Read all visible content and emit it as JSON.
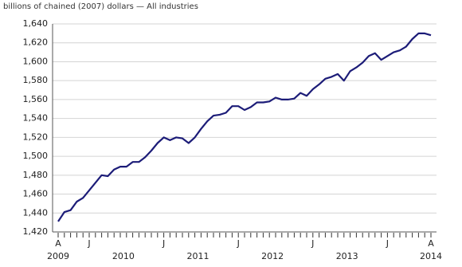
{
  "chart_data": {
    "type": "line",
    "title": "billions of chained (2007) dollars — All industries",
    "categories": [
      "A",
      null,
      null,
      null,
      null,
      "J",
      null,
      null,
      null,
      null,
      null,
      null,
      null,
      null,
      null,
      null,
      null,
      "J",
      null,
      null,
      null,
      null,
      null,
      null,
      null,
      null,
      null,
      null,
      null,
      "J",
      null,
      null,
      null,
      null,
      null,
      null,
      null,
      null,
      null,
      null,
      null,
      "J",
      null,
      null,
      null,
      null,
      null,
      null,
      null,
      null,
      null,
      null,
      null,
      "J",
      null,
      null,
      null,
      null,
      null,
      null,
      "A"
    ],
    "years": [
      "2009",
      "2010",
      "2011",
      "2012",
      "2013",
      "2014"
    ],
    "series": [
      {
        "name": "All industries",
        "color": "#1c1c78",
        "values": [
          1431,
          1441,
          1443,
          1452,
          1456,
          1464,
          1472,
          1480,
          1479,
          1486,
          1489,
          1489,
          1494,
          1494,
          1499,
          1506,
          1514,
          1520,
          1517,
          1520,
          1519,
          1514,
          1520,
          1529,
          1537,
          1543,
          1544,
          1546,
          1553,
          1553,
          1549,
          1552,
          1557,
          1557,
          1558,
          1562,
          1560,
          1560,
          1561,
          1567,
          1564,
          1571,
          1576,
          1582,
          1584,
          1587,
          1580,
          1590,
          1594,
          1599,
          1606,
          1609,
          1602,
          1606,
          1610,
          1612,
          1616,
          1624,
          1630,
          1630,
          1628
        ]
      }
    ],
    "ylim": [
      1420,
      1640
    ],
    "yticks": [
      {
        "value": 1420,
        "label": "1,420"
      },
      {
        "value": 1440,
        "label": "1,440"
      },
      {
        "value": 1460,
        "label": "1,460"
      },
      {
        "value": 1480,
        "label": "1,480"
      },
      {
        "value": 1500,
        "label": "1,500"
      },
      {
        "value": 1520,
        "label": "1,520"
      },
      {
        "value": 1540,
        "label": "1,540"
      },
      {
        "value": 1560,
        "label": "1,560"
      },
      {
        "value": 1580,
        "label": "1,580"
      },
      {
        "value": 1600,
        "label": "1,600"
      },
      {
        "value": 1620,
        "label": "1,620"
      },
      {
        "value": 1640,
        "label": "1,640"
      }
    ],
    "grid": true
  }
}
